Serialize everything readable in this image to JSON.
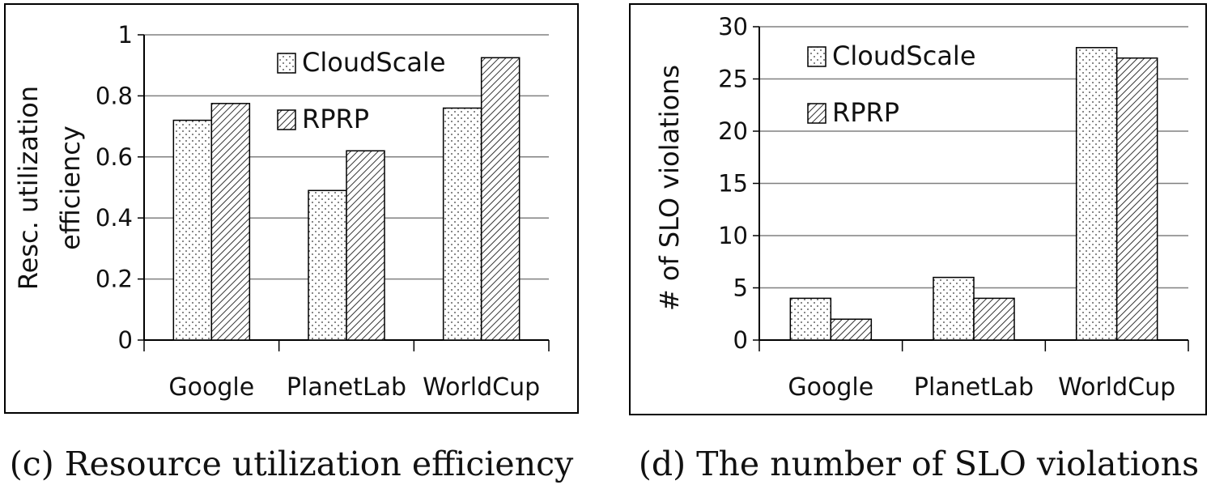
{
  "colors": {
    "cloudscale": "dotted",
    "rprp": "hatched"
  },
  "chart_data": [
    {
      "type": "bar",
      "caption": "(c) Resource utilization efficiency",
      "ylabel_lines": [
        "Resc. utilization",
        "efficiency"
      ],
      "categories": [
        "Google",
        "PlanetLab",
        "WorldCup"
      ],
      "ylim": [
        0,
        1
      ],
      "yticks": [
        "0",
        "0.2",
        "0.4",
        "0.6",
        "0.8",
        "1"
      ],
      "ytick_values": [
        0,
        0.2,
        0.4,
        0.6,
        0.8,
        1
      ],
      "grid": true,
      "legend_position": "top-center",
      "series": [
        {
          "name": "CloudScale",
          "pattern": "dots",
          "values": [
            0.72,
            0.49,
            0.76
          ]
        },
        {
          "name": "RPRP",
          "pattern": "hatch",
          "values": [
            0.775,
            0.62,
            0.925
          ]
        }
      ]
    },
    {
      "type": "bar",
      "caption": "(d) The number of SLO violations",
      "ylabel_lines": [
        "# of SLO violations"
      ],
      "categories": [
        "Google",
        "PlanetLab",
        "WorldCup"
      ],
      "ylim": [
        0,
        30
      ],
      "yticks": [
        "0",
        "5",
        "10",
        "15",
        "20",
        "25",
        "30"
      ],
      "ytick_values": [
        0,
        5,
        10,
        15,
        20,
        25,
        30
      ],
      "grid": true,
      "legend_position": "top-left",
      "series": [
        {
          "name": "CloudScale",
          "pattern": "dots",
          "values": [
            4,
            6,
            28
          ]
        },
        {
          "name": "RPRP",
          "pattern": "hatch",
          "values": [
            2,
            4,
            27
          ]
        }
      ]
    }
  ]
}
